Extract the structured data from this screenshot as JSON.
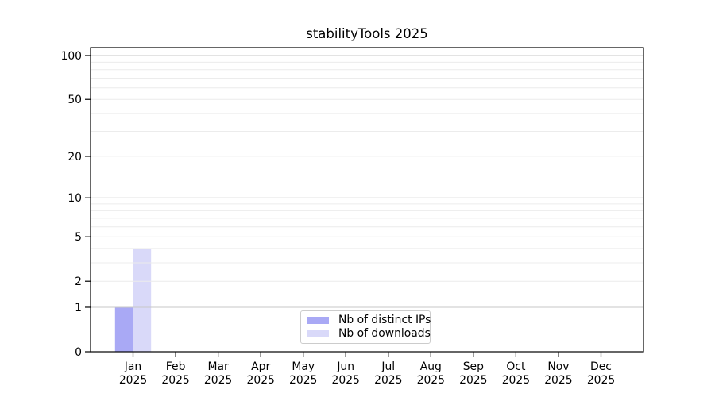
{
  "chart_data": {
    "type": "bar",
    "title": "stabilityTools 2025",
    "months": [
      "Jan",
      "Feb",
      "Mar",
      "Apr",
      "May",
      "Jun",
      "Jul",
      "Aug",
      "Sep",
      "Oct",
      "Nov",
      "Dec"
    ],
    "year": "2025",
    "series": [
      {
        "name": "Nb of distinct IPs",
        "color": "#a9a9f5",
        "values": [
          1,
          0,
          0,
          0,
          0,
          0,
          0,
          0,
          0,
          0,
          0,
          0
        ]
      },
      {
        "name": "Nb of downloads",
        "color": "#d9d9f9",
        "values": [
          4,
          0,
          0,
          0,
          0,
          0,
          0,
          0,
          0,
          0,
          0,
          0
        ]
      }
    ],
    "y_axis": {
      "scale": "log1p",
      "ticks": [
        0,
        1,
        2,
        5,
        10,
        20,
        50,
        100
      ],
      "major_gridlines": [
        1,
        10,
        100
      ],
      "minor_gridlines": [
        2,
        3,
        4,
        5,
        6,
        7,
        8,
        9,
        20,
        30,
        40,
        50,
        60,
        70,
        80,
        90
      ],
      "ylim": [
        0,
        113
      ]
    },
    "legend": {
      "position": "lower center",
      "entries": [
        "Nb of distinct IPs",
        "Nb of downloads"
      ]
    }
  }
}
